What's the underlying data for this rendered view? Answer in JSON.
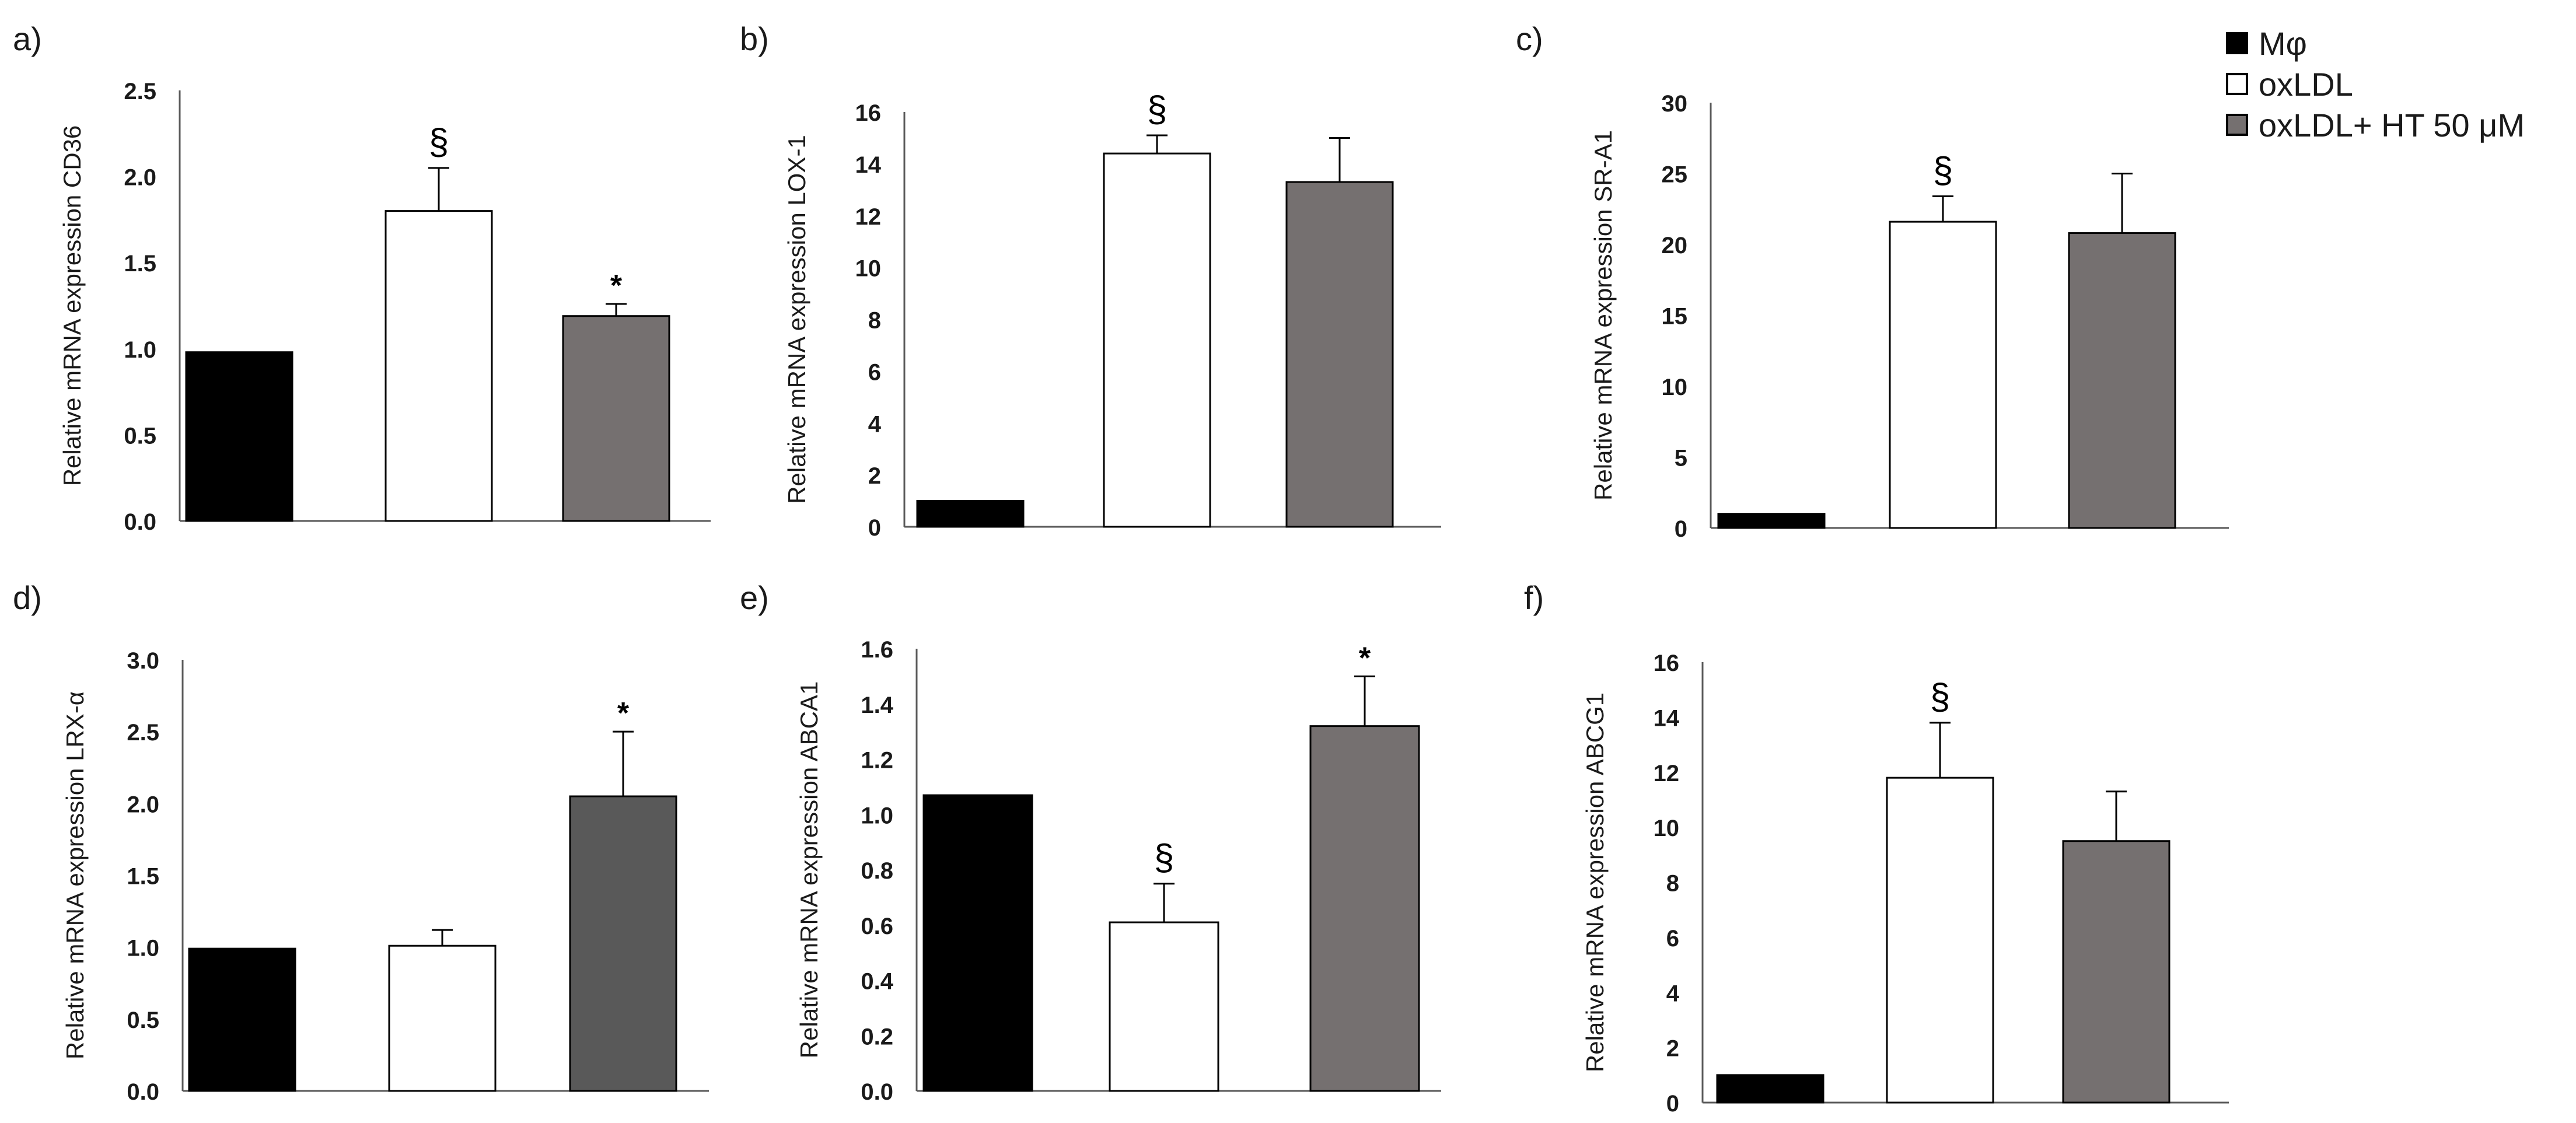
{
  "colors": {
    "mphi": "#000000",
    "oxldl": "#ffffff",
    "oxldl_ht": "#757070",
    "oxldl_ht_dark": "#595959",
    "axis": "#595959",
    "text": "#1a1a1a"
  },
  "legend": {
    "items": [
      "Mφ",
      "oxLDL",
      "oxLDL+ HT 50 μM"
    ]
  },
  "chart_data": [
    {
      "type": "bar",
      "panel": "a)",
      "ylabel": "Relative mRNA expression  CD36",
      "categories": [
        "Mφ",
        "oxLDL",
        "oxLDL+ HT 50 μM"
      ],
      "values": [
        0.98,
        1.8,
        1.19
      ],
      "errors": [
        0,
        0.25,
        0.07
      ],
      "annotations": [
        "",
        "§",
        "*"
      ],
      "ylim": [
        0,
        2.5
      ],
      "ticks": [
        "0.0",
        "0.5",
        "1.0",
        "1.5",
        "2.0",
        "2.5"
      ],
      "tick_bold": true,
      "third_color": "#757070"
    },
    {
      "type": "bar",
      "panel": "b)",
      "ylabel": "Relative mRNA expression  LOX-1",
      "categories": [
        "Mφ",
        "oxLDL",
        "oxLDL+ HT 50 μM"
      ],
      "values": [
        1.0,
        14.4,
        13.3
      ],
      "errors": [
        0,
        0.7,
        1.7
      ],
      "annotations": [
        "",
        "§",
        ""
      ],
      "ylim": [
        0,
        16
      ],
      "ticks": [
        "0",
        "2",
        "4",
        "6",
        "8",
        "10",
        "12",
        "14",
        "16"
      ],
      "tick_bold": false,
      "third_color": "#757070"
    },
    {
      "type": "bar",
      "panel": "c)",
      "ylabel": "Relative mRNA expression SR-A1",
      "categories": [
        "Mφ",
        "oxLDL",
        "oxLDL+ HT 50 μM"
      ],
      "values": [
        1.0,
        21.6,
        20.8
      ],
      "errors": [
        0,
        1.8,
        4.2
      ],
      "annotations": [
        "",
        "§",
        ""
      ],
      "ylim": [
        0,
        30
      ],
      "ticks": [
        "0",
        "5",
        "10",
        "15",
        "20",
        "25",
        "30"
      ],
      "tick_bold": false,
      "third_color": "#757070"
    },
    {
      "type": "bar",
      "panel": "d)",
      "ylabel": "Relative mRNA expression LRX-α",
      "categories": [
        "Mφ",
        "oxLDL",
        "oxLDL+ HT 50 μM"
      ],
      "values": [
        0.99,
        1.01,
        2.05
      ],
      "errors": [
        0,
        0.11,
        0.45
      ],
      "annotations": [
        "",
        "",
        "*"
      ],
      "ylim": [
        0,
        3.0
      ],
      "ticks": [
        "0.0",
        "0.5",
        "1.0",
        "1.5",
        "2.0",
        "2.5",
        "3.0"
      ],
      "tick_bold": true,
      "third_color": "#595959"
    },
    {
      "type": "bar",
      "panel": "e)",
      "ylabel": "Relative mRNA expression  ABCA1",
      "categories": [
        "Mφ",
        "oxLDL",
        "oxLDL+ HT 50 μM"
      ],
      "values": [
        1.07,
        0.61,
        1.32
      ],
      "errors": [
        0,
        0.14,
        0.18
      ],
      "annotations": [
        "",
        "§",
        "*"
      ],
      "ylim": [
        0,
        1.6
      ],
      "ticks": [
        "0.0",
        "0.2",
        "0.4",
        "0.6",
        "0.8",
        "1.0",
        "1.2",
        "1.4",
        "1.6"
      ],
      "tick_bold": true,
      "third_color": "#757070"
    },
    {
      "type": "bar",
      "panel": "f)",
      "ylabel": "Relative mRNA expression  ABCG1",
      "categories": [
        "Mφ",
        "oxLDL",
        "oxLDL+ HT 50 μM"
      ],
      "values": [
        1.0,
        11.8,
        9.5
      ],
      "errors": [
        0,
        2.0,
        1.8
      ],
      "annotations": [
        "",
        "§",
        ""
      ],
      "ylim": [
        0,
        16
      ],
      "ticks": [
        "0",
        "2",
        "4",
        "6",
        "8",
        "10",
        "12",
        "14",
        "16"
      ],
      "tick_bold": false,
      "third_color": "#757070"
    }
  ]
}
